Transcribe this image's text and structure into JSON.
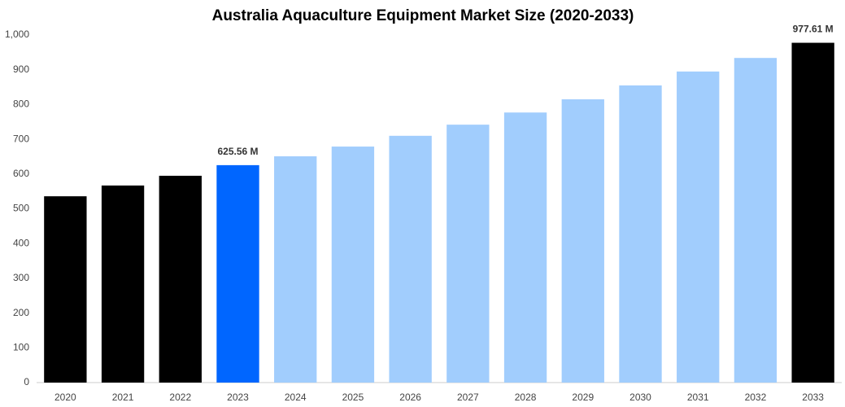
{
  "chart_data": {
    "type": "bar",
    "title": "Australia Aquaculture Equipment Market Size (2020-2033)",
    "categories": [
      "2020",
      "2021",
      "2022",
      "2023",
      "2024",
      "2025",
      "2026",
      "2027",
      "2028",
      "2029",
      "2030",
      "2031",
      "2032",
      "2033"
    ],
    "values": [
      536,
      567,
      595,
      625.56,
      651,
      679,
      710,
      742,
      777,
      815,
      855,
      895,
      934,
      977.61
    ],
    "value_labels": [
      null,
      null,
      null,
      "625.56 M",
      null,
      null,
      null,
      null,
      null,
      null,
      null,
      null,
      null,
      "977.61 M"
    ],
    "colors": [
      "#000000",
      "#000000",
      "#000000",
      "#0066ff",
      "#a1cdfd",
      "#a1cdfd",
      "#a1cdfd",
      "#a1cdfd",
      "#a1cdfd",
      "#a1cdfd",
      "#a1cdfd",
      "#a1cdfd",
      "#a1cdfd",
      "#000000"
    ],
    "ylim": [
      0,
      1000
    ],
    "yticks": [
      0,
      100,
      200,
      300,
      400,
      500,
      600,
      700,
      800,
      900,
      {
        "value": 1000,
        "label": "1,000"
      }
    ],
    "grid": false
  }
}
